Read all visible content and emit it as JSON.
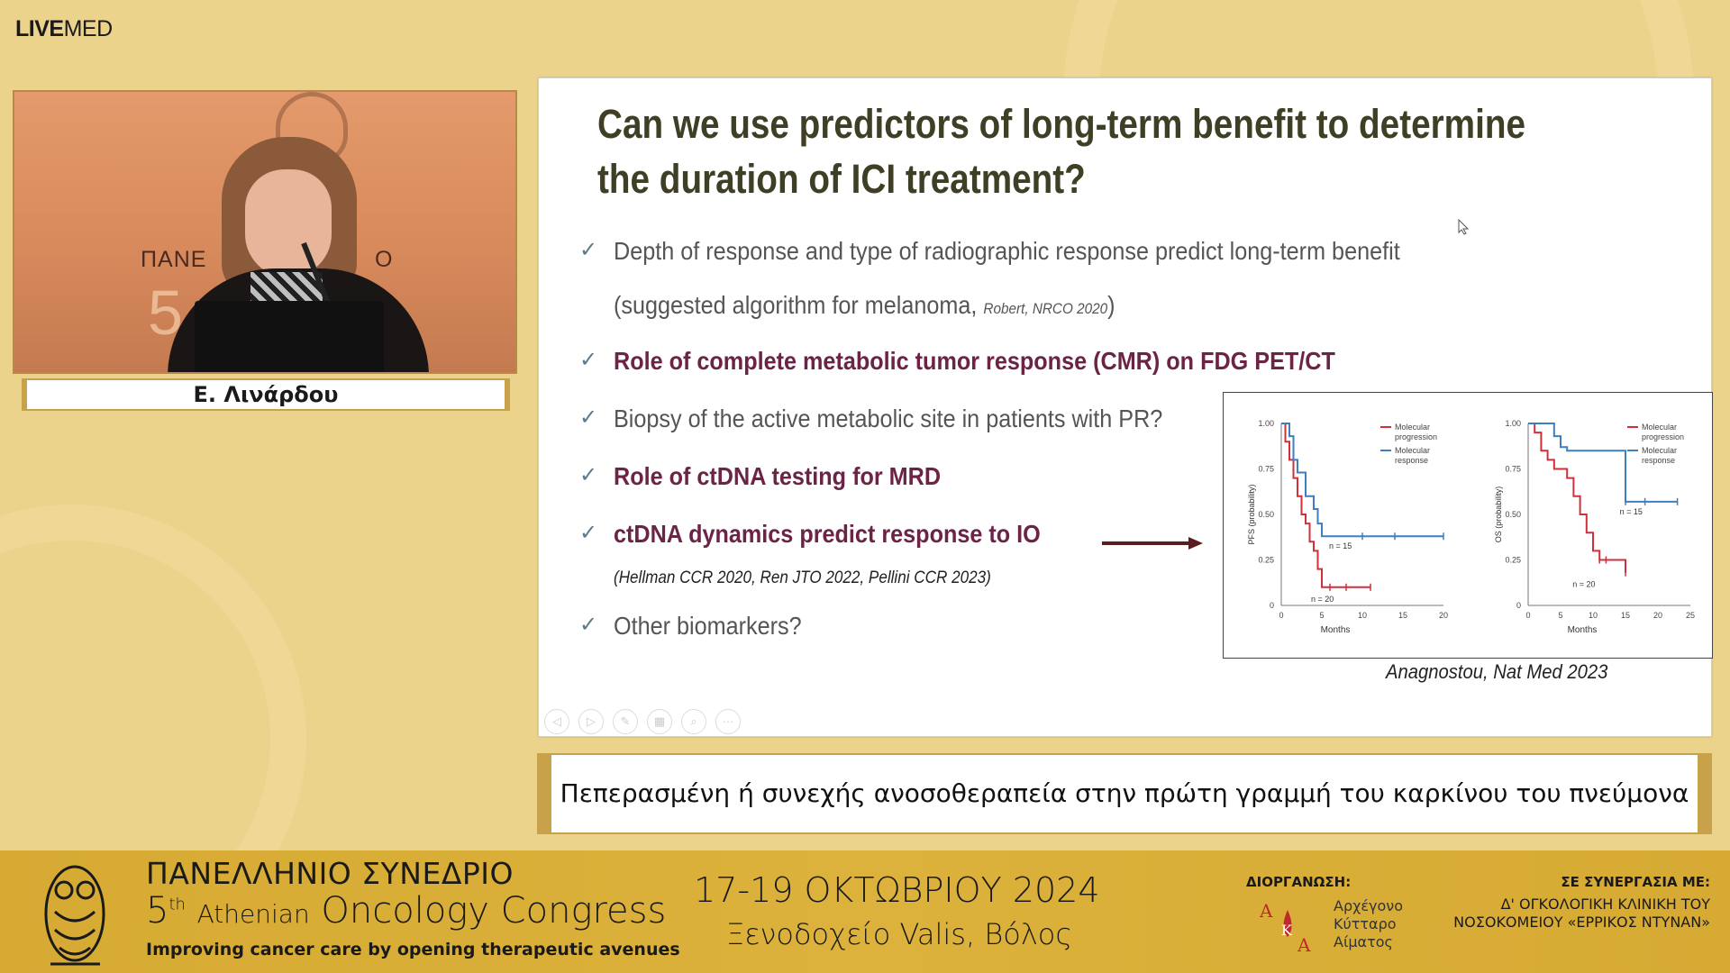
{
  "brand": {
    "logo_bold": "LIVE",
    "logo_rest": "MED"
  },
  "speaker": {
    "name": "Ε. Λινάρδου",
    "backdrop_left": "ΠΑΝΕ",
    "backdrop_right": "Ο",
    "backdrop_number": "5"
  },
  "slide": {
    "title_line1": "Can we use predictors of long-term benefit to determine",
    "title_line2": "the duration of ICI treatment?",
    "bullets": [
      {
        "check": "✓",
        "text": "Depth of response and type of radiographic response predict long-term benefit",
        "emphasis": false
      },
      {
        "check": "✓",
        "text": "Role of complete metabolic tumor response (CMR) on FDG PET/CT",
        "emphasis": true
      },
      {
        "check": "✓",
        "text": "Biopsy of the active metabolic site in patients with PR?",
        "emphasis": false
      },
      {
        "check": "✓",
        "text": "Role of ctDNA testing for MRD",
        "emphasis": true
      },
      {
        "check": "✓",
        "text": "ctDNA dynamics predict response to IO",
        "emphasis": true
      },
      {
        "check": "✓",
        "text": "Other biomarkers?",
        "emphasis": false
      }
    ],
    "sub_line_text": "(suggested algorithm for melanoma, ",
    "sub_line_cite": "Robert, NRCO 2020",
    "sub_line_close": ")",
    "references": "(Hellman CCR 2020, Ren JTO 2022, Pellini CCR 2023)",
    "figure_caption": "Anagnostou, Nat Med 2023"
  },
  "chart_data": [
    {
      "type": "line",
      "title": "",
      "xlabel": "Months",
      "ylabel": "PFS (probability)",
      "xlim": [
        0,
        20
      ],
      "ylim": [
        0,
        1
      ],
      "xticks": [
        "0",
        "5",
        "10",
        "15",
        "20"
      ],
      "yticks": [
        "0",
        "0.25",
        "0.50",
        "0.75",
        "1.00"
      ],
      "legend": "top-right",
      "series": [
        {
          "name": "Molecular progression",
          "color": "#d0303a",
          "annotation": "n = 20",
          "x": [
            0,
            0.5,
            1,
            1.5,
            2,
            2.5,
            3,
            3.5,
            4,
            4.5,
            5,
            6,
            8,
            11
          ],
          "y": [
            1.0,
            0.9,
            0.8,
            0.7,
            0.6,
            0.5,
            0.45,
            0.35,
            0.3,
            0.2,
            0.1,
            0.1,
            0.1,
            0.1
          ]
        },
        {
          "name": "Molecular response",
          "color": "#3f7fc0",
          "annotation": "n = 15",
          "x": [
            0,
            1,
            1.5,
            2,
            3,
            4,
            4.5,
            5,
            7,
            10,
            14,
            20
          ],
          "y": [
            1.0,
            0.93,
            0.8,
            0.73,
            0.6,
            0.53,
            0.45,
            0.38,
            0.38,
            0.38,
            0.38,
            0.38
          ]
        }
      ]
    },
    {
      "type": "line",
      "title": "",
      "xlabel": "Months",
      "ylabel": "OS (probability)",
      "xlim": [
        0,
        25
      ],
      "ylim": [
        0,
        1
      ],
      "xticks": [
        "0",
        "5",
        "10",
        "15",
        "20",
        "25"
      ],
      "yticks": [
        "0",
        "0.25",
        "0.50",
        "0.75",
        "1.00"
      ],
      "legend": "top-right",
      "series": [
        {
          "name": "Molecular progression",
          "color": "#d0303a",
          "annotation": "n = 20",
          "x": [
            0,
            1,
            2,
            3,
            4,
            5,
            6,
            7,
            8,
            9,
            10,
            11,
            12,
            15
          ],
          "y": [
            1.0,
            0.95,
            0.85,
            0.8,
            0.75,
            0.75,
            0.7,
            0.6,
            0.5,
            0.4,
            0.3,
            0.25,
            0.25,
            0.18
          ]
        },
        {
          "name": "Molecular response",
          "color": "#3f7fc0",
          "annotation": "n = 15",
          "x": [
            0,
            3,
            4,
            5,
            6,
            10,
            13,
            15,
            18,
            23
          ],
          "y": [
            1.0,
            1.0,
            0.93,
            0.87,
            0.85,
            0.85,
            0.85,
            0.57,
            0.57,
            0.57
          ]
        }
      ]
    }
  ],
  "subtitle": "Πεπερασμένη ή συνεχής ανοσοθεραπεία στην πρώτη γραμμή του καρκίνου του πνεύμονα",
  "footer": {
    "line1": "ΠΑΝΕΛΛΗΝΙΟ ΣΥΝΕΔΡΙΟ",
    "line2_num": "5",
    "line2_sup": "th",
    "line2_a": "Athenian",
    "line2_b": "Oncology Congress",
    "tagline": "Improving cancer care by opening therapeutic avenues",
    "date": "17-19 ΟΚΤΩΒΡΙΟΥ 2024",
    "venue": "Ξενοδοχείο Valis, Βόλος",
    "organizer_label": "ΔΙΟΡΓΑΝΩΣΗ:",
    "organizer_name_1": "Αρχέγονο",
    "organizer_name_2": "Κύτταρο",
    "organizer_name_3": "Αίματος",
    "cooperation_label": "ΣΕ ΣΥΝΕΡΓΑΣΙΑ ΜΕ:",
    "cooperation_line1": "Δ' ΟΓΚΟΛΟΓΙΚΗ ΚΛΙΝΙΚΗ ΤΟΥ",
    "cooperation_line2": "ΝΟΣΟΚΟΜΕΙΟΥ «ΕΡΡΙΚΟΣ ΝΤΥΝΑΝ»"
  }
}
